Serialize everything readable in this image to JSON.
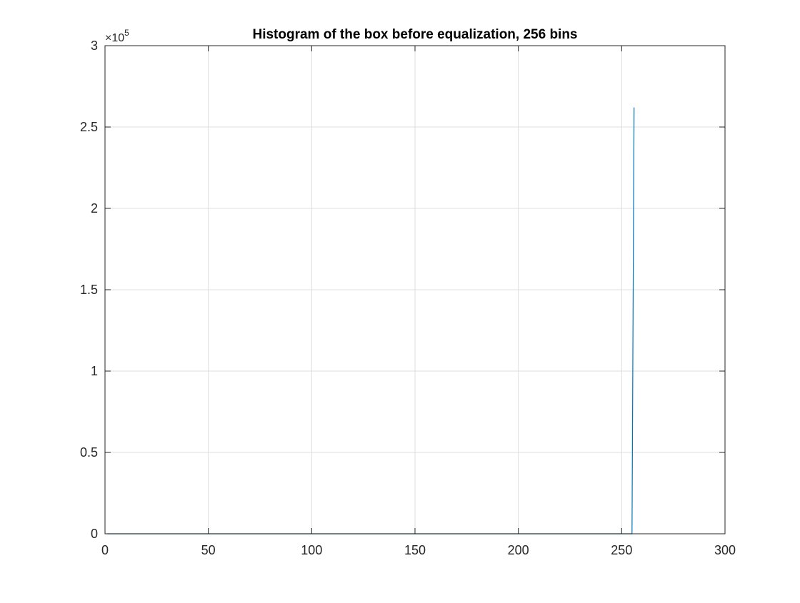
{
  "chart_data": {
    "type": "line",
    "title": "Histogram of the box before equalization, 256 bins",
    "xlabel": "",
    "ylabel": "",
    "xlim": [
      0,
      300
    ],
    "ylim": [
      0,
      300000
    ],
    "xticks": [
      0,
      50,
      100,
      150,
      200,
      250,
      300
    ],
    "xtick_labels": [
      "0",
      "50",
      "100",
      "150",
      "200",
      "250",
      "300"
    ],
    "yticks": [
      0,
      50000,
      100000,
      150000,
      200000,
      250000,
      300000
    ],
    "ytick_labels": [
      "0",
      "0.5",
      "1",
      "1.5",
      "2",
      "2.5",
      "3"
    ],
    "y_multiplier_label": {
      "base": "×10",
      "exponent": "5"
    },
    "grid": true,
    "series": [
      {
        "color": "#0072BD",
        "x": [
          1,
          254,
          255,
          256
        ],
        "y": [
          0,
          0,
          0,
          262000
        ]
      }
    ]
  }
}
